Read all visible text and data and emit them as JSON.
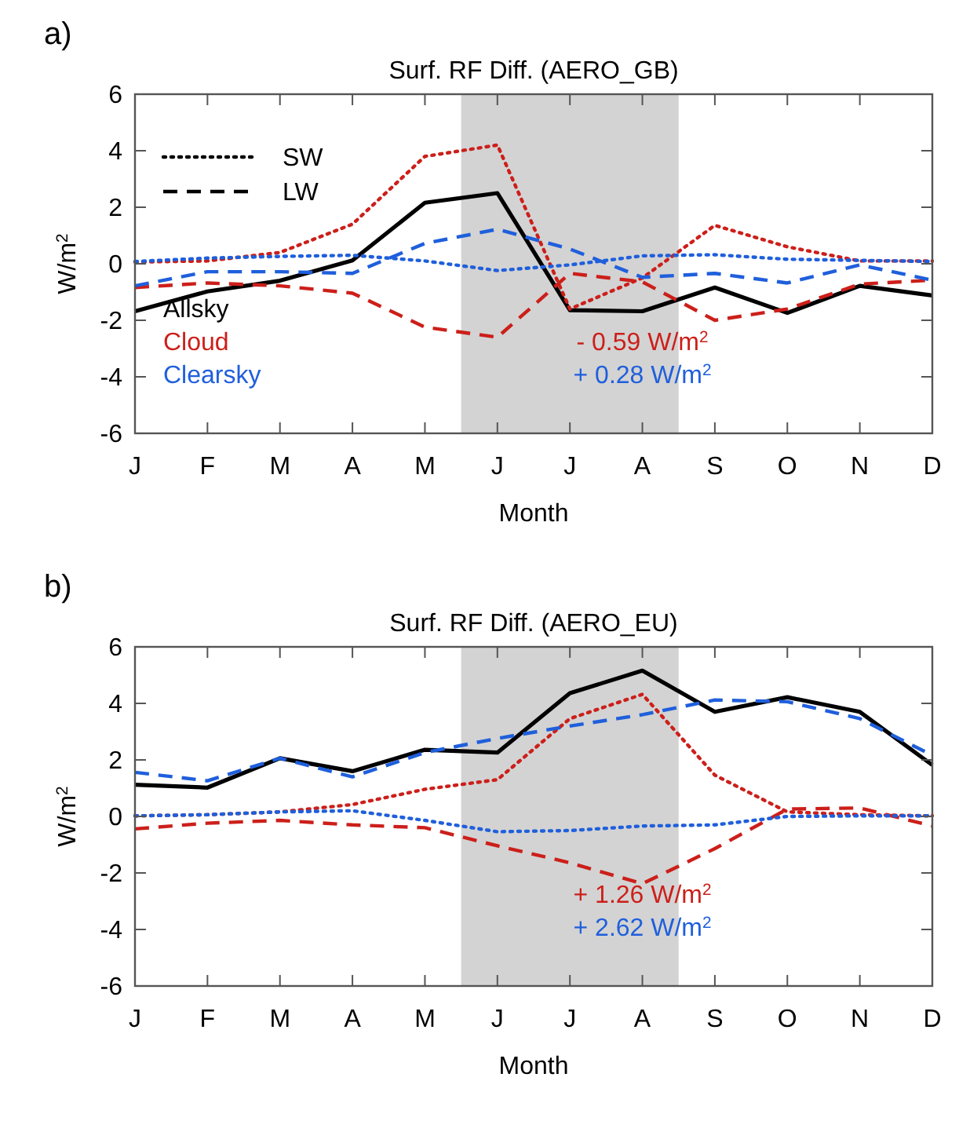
{
  "chart_data": [
    {
      "type": "line",
      "title": "Surf. RF Diff. (AERO_GB)",
      "xlabel": "Month",
      "ylabel": "W/m$^{2}$",
      "categories": [
        "J",
        "F",
        "M",
        "A",
        "M",
        "J",
        "J",
        "A",
        "S",
        "O",
        "N",
        "D"
      ],
      "ylim": [
        -6,
        6
      ],
      "yticks": [
        -6,
        -4,
        -2,
        0,
        2,
        4,
        6
      ],
      "grid": false,
      "legend": "left",
      "marker": "none",
      "annotations": [
        "a)",
        "SW",
        "LW",
        "- 0.59 W/m$^{2}$",
        "+ 0.28 W/m$^{2}$"
      ],
      "series": [
        {
          "name": "Allsky",
          "color": "#000000",
          "line_style": "solid",
          "values": [
            -1.68,
            -0.98,
            -0.6,
            0.12,
            2.16,
            2.5,
            -1.64,
            -1.68,
            -0.84,
            -1.74,
            -0.78,
            -1.12
          ]
        },
        {
          "name": "Cloud",
          "color": "#cc1f1a",
          "line_style": "dotted",
          "values": [
            0.06,
            0.1,
            0.4,
            1.4,
            3.8,
            4.2,
            -1.6,
            -0.5,
            1.36,
            0.6,
            0.1,
            0.1
          ]
        },
        {
          "color": "#cc1f1a",
          "line_style": "dashed",
          "values": [
            -0.84,
            -0.68,
            -0.78,
            -1.04,
            -2.24,
            -2.6,
            -0.34,
            -0.64,
            -2.0,
            -1.6,
            -0.72,
            -0.58
          ]
        },
        {
          "name": "Clearsky",
          "color": "#1f5fdc",
          "line_style": "dotted",
          "values": [
            0.08,
            0.2,
            0.26,
            0.3,
            0.1,
            -0.24,
            -0.04,
            0.28,
            0.32,
            0.16,
            0.12,
            0.08
          ]
        },
        {
          "color": "#1f5fdc",
          "line_style": "dashed",
          "values": [
            -0.78,
            -0.28,
            -0.28,
            -0.34,
            0.72,
            1.22,
            0.52,
            -0.48,
            -0.34,
            -0.68,
            -0.04,
            -0.58
          ]
        }
      ]
    },
    {
      "type": "line",
      "title": "Surf. RF Diff. (AERO_EU)",
      "xlabel": "Month",
      "ylabel": "W/m$^{2}$",
      "categories": [
        "J",
        "F",
        "M",
        "A",
        "M",
        "J",
        "J",
        "A",
        "S",
        "O",
        "N",
        "D"
      ],
      "ylim": [
        -6,
        6
      ],
      "yticks": [
        -6,
        -4,
        -2,
        0,
        2,
        4,
        6
      ],
      "grid": false,
      "legend": false,
      "marker": "none",
      "annotations": [
        "b)",
        "+ 1.26 W/m$^{2}$",
        "+ 2.62 W/m$^{2}$"
      ],
      "series": [
        {
          "color": "#000000",
          "line_style": "solid",
          "values": [
            1.12,
            1.02,
            2.06,
            1.6,
            2.36,
            2.26,
            4.36,
            5.16,
            3.7,
            4.22,
            3.7,
            1.82
          ]
        },
        {
          "color": "#cc1f1a",
          "line_style": "dotted",
          "values": [
            0.02,
            0.06,
            0.16,
            0.42,
            0.96,
            1.3,
            3.46,
            4.32,
            1.46,
            0.16,
            0.06,
            0.02
          ]
        },
        {
          "color": "#cc1f1a",
          "line_style": "dashed",
          "values": [
            -0.44,
            -0.24,
            -0.14,
            -0.3,
            -0.4,
            -1.04,
            -1.64,
            -2.38,
            -1.14,
            0.26,
            0.3,
            -0.34
          ]
        },
        {
          "color": "#1f5fdc",
          "line_style": "dotted",
          "values": [
            0.02,
            0.06,
            0.16,
            0.2,
            -0.14,
            -0.54,
            -0.5,
            -0.34,
            -0.3,
            0,
            0.02,
            0.02
          ]
        },
        {
          "color": "#1f5fdc",
          "line_style": "dashed",
          "values": [
            1.56,
            1.26,
            2.06,
            1.4,
            2.26,
            2.76,
            3.2,
            3.6,
            4.12,
            4.06,
            3.46,
            2.16
          ]
        }
      ]
    }
  ]
}
